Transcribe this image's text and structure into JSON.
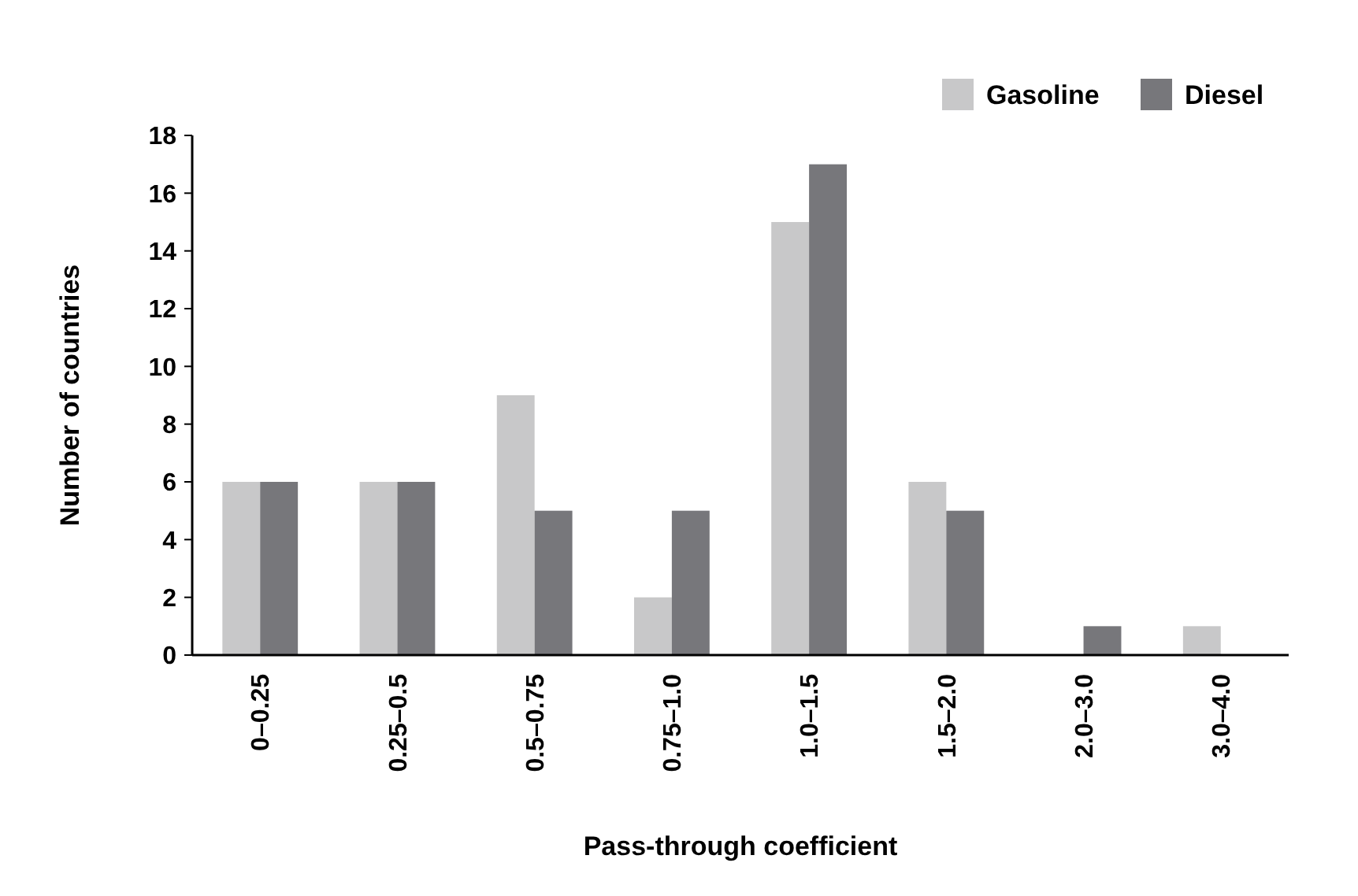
{
  "chart_data": {
    "type": "bar",
    "xlabel": "Pass-through coefficient",
    "ylabel": "Number of countries",
    "categories": [
      "0–0.25",
      "0.25–0.5",
      "0.5–0.75",
      "0.75–1.0",
      "1.0–1.5",
      "1.5–2.0",
      "2.0–3.0",
      "3.0–4.0"
    ],
    "series": [
      {
        "name": "Gasoline",
        "color": "#c8c8c9",
        "values": [
          6,
          6,
          9,
          2,
          15,
          6,
          0,
          1
        ]
      },
      {
        "name": "Diesel",
        "color": "#77777b",
        "values": [
          6,
          6,
          5,
          5,
          17,
          5,
          1,
          0
        ]
      }
    ],
    "ylim": [
      0,
      18
    ],
    "yticks": [
      0,
      2,
      4,
      6,
      8,
      10,
      12,
      14,
      16,
      18
    ],
    "legend": "top right"
  }
}
